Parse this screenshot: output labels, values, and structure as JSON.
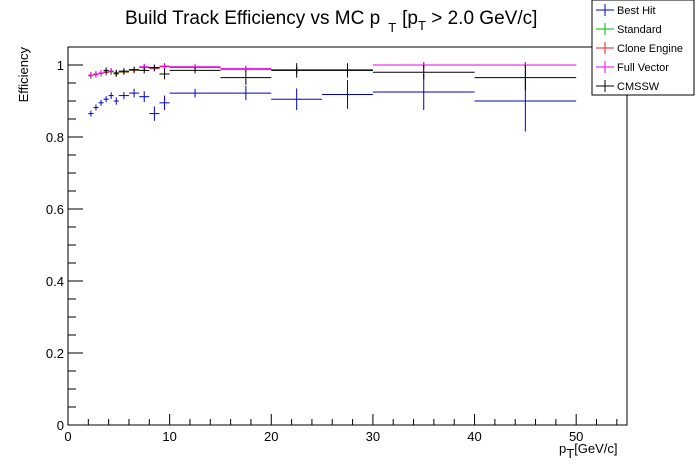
{
  "chart_data": {
    "type": "scatter",
    "title": {
      "main": "Build Track Efficiency vs MC p",
      "main_sub": "T",
      "cut_open": "[p",
      "cut_sub": "T",
      "cut_rest": " > 2.0 GeV/c]"
    },
    "xlabel": {
      "main": "p",
      "sub": "T",
      "unit": "[GeV/c]"
    },
    "ylabel": "Efficiency",
    "xlim": [
      0,
      55
    ],
    "ylim": [
      0,
      1.05
    ],
    "x_ticks": [
      0,
      10,
      20,
      30,
      40,
      50
    ],
    "x_tick_labels": [
      "0",
      "10",
      "20",
      "30",
      "40",
      "50"
    ],
    "y_ticks": [
      0,
      0.2,
      0.4,
      0.6,
      0.8,
      1
    ],
    "y_tick_labels": [
      "0",
      "0.2",
      "0.4",
      "0.6",
      "0.8",
      "1"
    ],
    "grid": false,
    "legend_position": "top-right",
    "colors": {
      "best_hit": "#0000cc",
      "standard": "#00bb00",
      "clone_engine": "#ee2222",
      "full_vector": "#ee00ee",
      "cmssw": "#000000"
    },
    "series": [
      {
        "name": "Best Hit",
        "color": "#0000cc",
        "points": [
          {
            "x": 2.25,
            "y": 0.865,
            "xerr": 0.25,
            "yerr": 0.005
          },
          {
            "x": 2.75,
            "y": 0.882,
            "xerr": 0.25,
            "yerr": 0.006
          },
          {
            "x": 3.25,
            "y": 0.895,
            "xerr": 0.25,
            "yerr": 0.007
          },
          {
            "x": 3.75,
            "y": 0.905,
            "xerr": 0.25,
            "yerr": 0.008
          },
          {
            "x": 4.25,
            "y": 0.915,
            "xerr": 0.25,
            "yerr": 0.009
          },
          {
            "x": 4.75,
            "y": 0.9,
            "xerr": 0.25,
            "yerr": 0.01
          },
          {
            "x": 5.5,
            "y": 0.915,
            "xerr": 0.5,
            "yerr": 0.01
          },
          {
            "x": 6.5,
            "y": 0.922,
            "xerr": 0.5,
            "yerr": 0.012
          },
          {
            "x": 7.5,
            "y": 0.912,
            "xerr": 0.5,
            "yerr": 0.015
          },
          {
            "x": 8.5,
            "y": 0.865,
            "xerr": 0.5,
            "yerr": 0.02
          },
          {
            "x": 9.5,
            "y": 0.895,
            "xerr": 0.5,
            "yerr": 0.02
          },
          {
            "x": 12.5,
            "y": 0.922,
            "xerr": 2.5,
            "yerr": 0.012
          },
          {
            "x": 17.5,
            "y": 0.922,
            "xerr": 2.5,
            "yerr": 0.02
          },
          {
            "x": 22.5,
            "y": 0.905,
            "xerr": 2.5,
            "yerr": 0.03
          },
          {
            "x": 27.5,
            "y": 0.918,
            "xerr": 2.5,
            "yerr": 0.04
          },
          {
            "x": 35,
            "y": 0.925,
            "xerr": 5,
            "yerr": 0.05
          },
          {
            "x": 45,
            "y": 0.9,
            "xerr": 5,
            "yerr": 0.085
          }
        ]
      },
      {
        "name": "Standard",
        "color": "#00bb00",
        "points": [
          {
            "x": 2.25,
            "y": 0.97,
            "xerr": 0.25,
            "yerr": 0.003
          },
          {
            "x": 2.75,
            "y": 0.973,
            "xerr": 0.25,
            "yerr": 0.003
          },
          {
            "x": 3.25,
            "y": 0.976,
            "xerr": 0.25,
            "yerr": 0.004
          },
          {
            "x": 3.75,
            "y": 0.979,
            "xerr": 0.25,
            "yerr": 0.004
          },
          {
            "x": 4.25,
            "y": 0.981,
            "xerr": 0.25,
            "yerr": 0.004
          },
          {
            "x": 4.75,
            "y": 0.975,
            "xerr": 0.25,
            "yerr": 0.005
          },
          {
            "x": 5.5,
            "y": 0.98,
            "xerr": 0.5,
            "yerr": 0.005
          },
          {
            "x": 6.5,
            "y": 0.985,
            "xerr": 0.5,
            "yerr": 0.006
          },
          {
            "x": 7.5,
            "y": 0.993,
            "xerr": 0.5,
            "yerr": 0.006
          },
          {
            "x": 8.5,
            "y": 0.99,
            "xerr": 0.5,
            "yerr": 0.007
          },
          {
            "x": 9.5,
            "y": 0.995,
            "xerr": 0.5,
            "yerr": 0.006
          },
          {
            "x": 12.5,
            "y": 0.993,
            "xerr": 2.5,
            "yerr": 0.004
          },
          {
            "x": 17.5,
            "y": 0.988,
            "xerr": 2.5,
            "yerr": 0.006
          },
          {
            "x": 22.5,
            "y": 0.985,
            "xerr": 2.5,
            "yerr": 0.009
          },
          {
            "x": 27.5,
            "y": 0.985,
            "xerr": 2.5,
            "yerr": 0.012
          },
          {
            "x": 35,
            "y": 1.0,
            "xerr": 5,
            "yerr": 0.0
          },
          {
            "x": 45,
            "y": 1.0,
            "xerr": 5,
            "yerr": 0.0
          }
        ]
      },
      {
        "name": "Clone Engine",
        "color": "#ee2222",
        "points": [
          {
            "x": 2.25,
            "y": 0.971,
            "xerr": 0.25,
            "yerr": 0.003
          },
          {
            "x": 2.75,
            "y": 0.974,
            "xerr": 0.25,
            "yerr": 0.003
          },
          {
            "x": 3.25,
            "y": 0.977,
            "xerr": 0.25,
            "yerr": 0.004
          },
          {
            "x": 3.75,
            "y": 0.98,
            "xerr": 0.25,
            "yerr": 0.004
          },
          {
            "x": 4.25,
            "y": 0.982,
            "xerr": 0.25,
            "yerr": 0.004
          },
          {
            "x": 4.75,
            "y": 0.976,
            "xerr": 0.25,
            "yerr": 0.005
          },
          {
            "x": 5.5,
            "y": 0.981,
            "xerr": 0.5,
            "yerr": 0.005
          },
          {
            "x": 6.5,
            "y": 0.986,
            "xerr": 0.5,
            "yerr": 0.006
          },
          {
            "x": 7.5,
            "y": 0.994,
            "xerr": 0.5,
            "yerr": 0.006
          },
          {
            "x": 8.5,
            "y": 0.991,
            "xerr": 0.5,
            "yerr": 0.007
          },
          {
            "x": 9.5,
            "y": 0.996,
            "xerr": 0.5,
            "yerr": 0.006
          },
          {
            "x": 12.5,
            "y": 0.994,
            "xerr": 2.5,
            "yerr": 0.004
          },
          {
            "x": 17.5,
            "y": 0.989,
            "xerr": 2.5,
            "yerr": 0.006
          },
          {
            "x": 22.5,
            "y": 0.986,
            "xerr": 2.5,
            "yerr": 0.009
          },
          {
            "x": 27.5,
            "y": 0.986,
            "xerr": 2.5,
            "yerr": 0.012
          },
          {
            "x": 35,
            "y": 1.0,
            "xerr": 5,
            "yerr": 0.0
          },
          {
            "x": 45,
            "y": 1.0,
            "xerr": 5,
            "yerr": 0.0
          }
        ]
      },
      {
        "name": "Full Vector",
        "color": "#ee00ee",
        "points": [
          {
            "x": 2.25,
            "y": 0.972,
            "xerr": 0.25,
            "yerr": 0.003
          },
          {
            "x": 2.75,
            "y": 0.975,
            "xerr": 0.25,
            "yerr": 0.003
          },
          {
            "x": 3.25,
            "y": 0.978,
            "xerr": 0.25,
            "yerr": 0.004
          },
          {
            "x": 3.75,
            "y": 0.981,
            "xerr": 0.25,
            "yerr": 0.004
          },
          {
            "x": 4.25,
            "y": 0.983,
            "xerr": 0.25,
            "yerr": 0.004
          },
          {
            "x": 4.75,
            "y": 0.977,
            "xerr": 0.25,
            "yerr": 0.005
          },
          {
            "x": 5.5,
            "y": 0.982,
            "xerr": 0.5,
            "yerr": 0.005
          },
          {
            "x": 6.5,
            "y": 0.987,
            "xerr": 0.5,
            "yerr": 0.006
          },
          {
            "x": 7.5,
            "y": 0.995,
            "xerr": 0.5,
            "yerr": 0.006
          },
          {
            "x": 8.5,
            "y": 0.992,
            "xerr": 0.5,
            "yerr": 0.007
          },
          {
            "x": 9.5,
            "y": 0.997,
            "xerr": 0.5,
            "yerr": 0.006
          },
          {
            "x": 12.5,
            "y": 0.995,
            "xerr": 2.5,
            "yerr": 0.004
          },
          {
            "x": 17.5,
            "y": 0.99,
            "xerr": 2.5,
            "yerr": 0.006
          },
          {
            "x": 22.5,
            "y": 0.987,
            "xerr": 2.5,
            "yerr": 0.009
          },
          {
            "x": 27.5,
            "y": 0.987,
            "xerr": 2.5,
            "yerr": 0.012
          },
          {
            "x": 35,
            "y": 1.0,
            "xerr": 5,
            "yerr": 0.0
          },
          {
            "x": 45,
            "y": 1.0,
            "xerr": 5,
            "yerr": 0.0
          }
        ]
      },
      {
        "name": "CMSSW",
        "color": "#000000",
        "points": [
          {
            "x": 3.75,
            "y": 0.985,
            "xerr": 0.25,
            "yerr": 0.005
          },
          {
            "x": 4.75,
            "y": 0.978,
            "xerr": 0.25,
            "yerr": 0.006
          },
          {
            "x": 5.5,
            "y": 0.983,
            "xerr": 0.5,
            "yerr": 0.006
          },
          {
            "x": 6.5,
            "y": 0.987,
            "xerr": 0.5,
            "yerr": 0.007
          },
          {
            "x": 7.5,
            "y": 0.985,
            "xerr": 0.5,
            "yerr": 0.008
          },
          {
            "x": 8.5,
            "y": 0.993,
            "xerr": 0.5,
            "yerr": 0.008
          },
          {
            "x": 9.5,
            "y": 0.975,
            "xerr": 0.5,
            "yerr": 0.015
          },
          {
            "x": 12.5,
            "y": 0.985,
            "xerr": 2.5,
            "yerr": 0.007
          },
          {
            "x": 17.5,
            "y": 0.965,
            "xerr": 2.5,
            "yerr": 0.02
          },
          {
            "x": 22.5,
            "y": 0.985,
            "xerr": 2.5,
            "yerr": 0.02
          },
          {
            "x": 27.5,
            "y": 0.985,
            "xerr": 2.5,
            "yerr": 0.02
          },
          {
            "x": 35,
            "y": 0.98,
            "xerr": 5,
            "yerr": 0.02
          },
          {
            "x": 45,
            "y": 0.965,
            "xerr": 5,
            "yerr": 0.035
          }
        ]
      }
    ]
  }
}
